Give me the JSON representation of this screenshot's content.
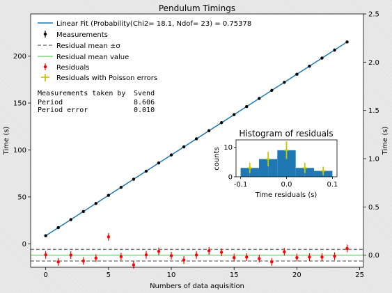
{
  "chart_data": {
    "type": "scatter",
    "title": "Pendulum Timings",
    "xlabel": "Numbers of data aquisition",
    "ylabel_left": "Time (s)",
    "ylabel_right": "Time (s)",
    "xlim": [
      -1.2,
      25.3
    ],
    "ylim_left": [
      -25,
      245
    ],
    "ylim_right": [
      -0.125,
      2.5
    ],
    "xticks": [
      0,
      5,
      10,
      15,
      20,
      25
    ],
    "yticks_left": [
      0,
      50,
      100,
      150,
      200
    ],
    "yticks_right": [
      0.0,
      0.5,
      1.0,
      1.5,
      2.0,
      2.5
    ],
    "grid": false,
    "legend_position": "top-left",
    "legend": [
      "Linear Fit (Probability(Chi2=  18.1, Ndof= 23) = 0.75378",
      "Measurements",
      "Residual mean ±σ",
      "Residual mean value",
      "Residuals",
      "Residuals with Poisson errors"
    ],
    "colors": {
      "fit": "#1f77b4",
      "measurements": "#000000",
      "residual_band": "#808080",
      "residual_mean": "#7fd07f",
      "residuals": "#ff0000",
      "poisson": "#c8c800",
      "hist": "#1f77b4"
    },
    "info_box": [
      [
        "Measurements taken by",
        "Svend"
      ],
      [
        "Period",
        "8.606"
      ],
      [
        "Period error",
        "0.010"
      ]
    ],
    "fit": {
      "slope": 8.606,
      "intercept": 8.6
    },
    "measurements": {
      "x": [
        0,
        1,
        2,
        3,
        4,
        5,
        6,
        7,
        8,
        9,
        10,
        11,
        12,
        13,
        14,
        15,
        16,
        17,
        18,
        19,
        20,
        21,
        22,
        23,
        24
      ],
      "y": [
        8.6,
        17.2,
        25.8,
        34.4,
        43.0,
        51.6,
        60.2,
        68.8,
        77.4,
        86.1,
        94.7,
        103.3,
        111.9,
        120.5,
        129.1,
        137.7,
        146.3,
        154.9,
        163.5,
        172.1,
        180.7,
        189.3,
        197.9,
        206.5,
        215.1
      ]
    },
    "residuals": {
      "x": [
        0,
        1,
        2,
        3,
        4,
        5,
        6,
        7,
        8,
        9,
        10,
        11,
        12,
        13,
        14,
        15,
        16,
        17,
        18,
        19,
        20,
        21,
        22,
        23,
        24
      ],
      "y": [
        0.003,
        -0.07,
        0.001,
        -0.06,
        -0.03,
        0.19,
        -0.015,
        -0.1,
        0.003,
        0.04,
        -0.005,
        -0.05,
        0.002,
        0.045,
        0.03,
        -0.025,
        -0.02,
        -0.035,
        -0.07,
        0.035,
        -0.025,
        -0.02,
        -0.02,
        -0.01,
        0.07
      ],
      "err": 0.04,
      "mean": 0.0,
      "std": 0.06
    },
    "inset": {
      "title": "Histogram of residuals",
      "xlabel": "Time residuals (s)",
      "ylabel": "counts",
      "xlim": [
        -0.11,
        0.11
      ],
      "ylim": [
        0,
        12.5
      ],
      "xticks": [
        -0.1,
        0.0,
        0.1
      ],
      "yticks": [
        0,
        10
      ],
      "bin_edges": [
        -0.1,
        -0.08,
        -0.06,
        -0.04,
        -0.02,
        0.0,
        0.02,
        0.04,
        0.06,
        0.08,
        0.1
      ],
      "counts": [
        3,
        3,
        6,
        6,
        9,
        9,
        3,
        3,
        2,
        2
      ],
      "poisson_x": [
        -0.08,
        -0.04,
        0.0,
        0.04,
        0.08
      ],
      "poisson_y": [
        3,
        6,
        9,
        3,
        2
      ]
    }
  }
}
